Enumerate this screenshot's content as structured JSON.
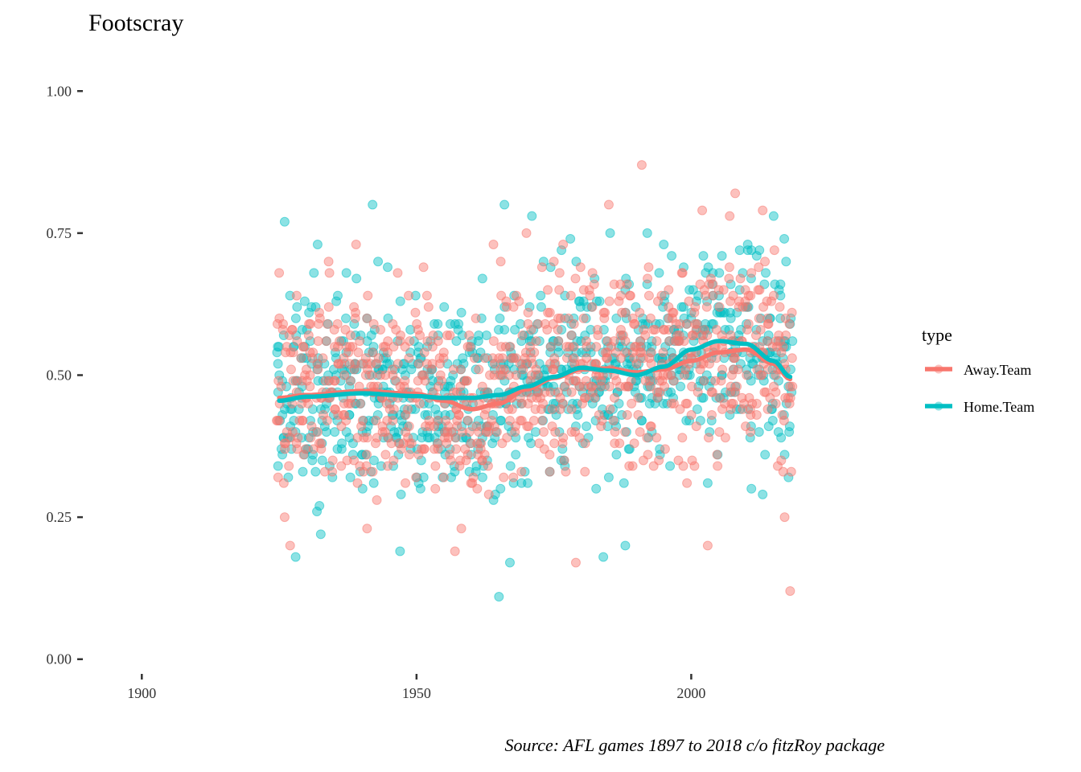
{
  "chart_data": {
    "type": "scatter",
    "title": "Footscray",
    "xlabel": "",
    "ylabel": "",
    "xlim": [
      1890,
      2032
    ],
    "ylim": [
      -0.04,
      1.04
    ],
    "x_ticks": [
      1900,
      1950,
      2000
    ],
    "y_ticks": [
      0.0,
      0.25,
      0.5,
      0.75,
      1.0
    ],
    "x_tick_labels": [
      "1900",
      "1950",
      "2000"
    ],
    "y_tick_labels": [
      "0.00",
      "0.25",
      "0.50",
      "0.75",
      "1.00"
    ],
    "grid": false,
    "legend": {
      "title": "type",
      "position": "right"
    },
    "caption": "Source: AFL games 1897 to 2018 c/o fitzRoy package",
    "point_x_range": [
      1925,
      2018
    ],
    "series": [
      {
        "name": "Away.Team",
        "color": "#F8766D",
        "smooth_x": [
          1925,
          1930,
          1940,
          1950,
          1955,
          1960,
          1965,
          1970,
          1975,
          1980,
          1985,
          1990,
          1995,
          2000,
          2005,
          2010,
          2015,
          2018
        ],
        "smooth_y": [
          0.46,
          0.465,
          0.472,
          0.467,
          0.455,
          0.44,
          0.45,
          0.475,
          0.495,
          0.51,
          0.512,
          0.505,
          0.51,
          0.525,
          0.54,
          0.545,
          0.52,
          0.493
        ],
        "sample_points": [
          [
            1925,
            0.68
          ],
          [
            1926,
            0.25
          ],
          [
            1927,
            0.2
          ],
          [
            1934,
            0.7
          ],
          [
            1939,
            0.73
          ],
          [
            1941,
            0.23
          ],
          [
            1957,
            0.19
          ],
          [
            1964,
            0.73
          ],
          [
            1970,
            0.75
          ],
          [
            1975,
            0.7
          ],
          [
            1979,
            0.17
          ],
          [
            1985,
            0.8
          ],
          [
            1991,
            0.87
          ],
          [
            2002,
            0.79
          ],
          [
            2007,
            0.78
          ],
          [
            2008,
            0.82
          ],
          [
            2013,
            0.79
          ],
          [
            2018,
            0.12
          ],
          [
            2017,
            0.25
          ],
          [
            2003,
            0.2
          ]
        ]
      },
      {
        "name": "Home.Team",
        "color": "#00BFC4",
        "smooth_x": [
          1925,
          1930,
          1940,
          1950,
          1955,
          1960,
          1965,
          1970,
          1975,
          1980,
          1985,
          1990,
          1995,
          2000,
          2005,
          2010,
          2015,
          2018
        ],
        "smooth_y": [
          0.455,
          0.462,
          0.468,
          0.463,
          0.46,
          0.46,
          0.465,
          0.48,
          0.497,
          0.513,
          0.508,
          0.5,
          0.515,
          0.545,
          0.56,
          0.555,
          0.525,
          0.497
        ],
        "sample_points": [
          [
            1926,
            0.77
          ],
          [
            1928,
            0.18
          ],
          [
            1932,
            0.73
          ],
          [
            1942,
            0.8
          ],
          [
            1943,
            0.7
          ],
          [
            1947,
            0.19
          ],
          [
            1962,
            0.67
          ],
          [
            1965,
            0.11
          ],
          [
            1966,
            0.8
          ],
          [
            1967,
            0.17
          ],
          [
            1971,
            0.78
          ],
          [
            1978,
            0.74
          ],
          [
            1984,
            0.18
          ],
          [
            1988,
            0.2
          ],
          [
            1992,
            0.75
          ],
          [
            1995,
            0.73
          ],
          [
            2003,
            0.31
          ],
          [
            2013,
            0.29
          ],
          [
            2015,
            0.78
          ],
          [
            2017,
            0.36
          ]
        ]
      }
    ]
  }
}
